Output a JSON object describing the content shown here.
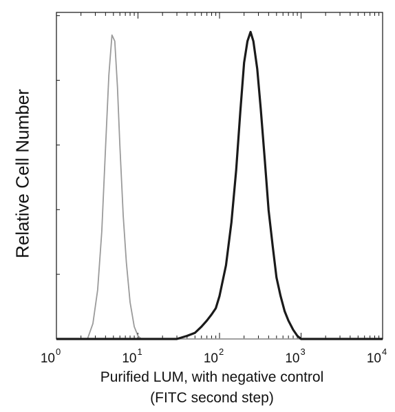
{
  "chart_data": {
    "type": "line",
    "title": "",
    "xlabel": "Purified LUM, with negative control",
    "xlabel_note": "(FITC second step)",
    "ylabel": "Relative Cell Number",
    "x_scale": "log",
    "xlim": [
      1,
      10000
    ],
    "ylim": [
      0,
      1
    ],
    "x_ticks": [
      {
        "base": "10",
        "exp": "0"
      },
      {
        "base": "10",
        "exp": "1"
      },
      {
        "base": "10",
        "exp": "2"
      },
      {
        "base": "10",
        "exp": "3"
      },
      {
        "base": "10",
        "exp": "4"
      }
    ],
    "grid": false,
    "legend": "none",
    "series": [
      {
        "color": "#9a9a9a",
        "x": [
          2.4,
          2.8,
          3.2,
          3.6,
          4.0,
          4.4,
          4.8,
          5.2,
          5.6,
          6.0,
          6.6,
          7.2,
          8.0,
          9.0,
          10.0,
          11.0
        ],
        "values": [
          0.0,
          0.05,
          0.16,
          0.35,
          0.62,
          0.86,
          0.99,
          0.97,
          0.82,
          0.63,
          0.4,
          0.25,
          0.12,
          0.04,
          0.01,
          0.0
        ]
      },
      {
        "color": "#1a1a1a",
        "x": [
          30,
          40,
          50,
          60,
          70,
          80,
          90,
          100,
          120,
          140,
          160,
          180,
          200,
          220,
          240,
          260,
          290,
          320,
          360,
          400,
          450,
          500,
          560,
          630,
          700,
          800,
          900,
          1000
        ],
        "values": [
          0.0,
          0.01,
          0.02,
          0.04,
          0.06,
          0.08,
          0.1,
          0.14,
          0.24,
          0.38,
          0.55,
          0.74,
          0.9,
          0.97,
          1.0,
          0.97,
          0.88,
          0.75,
          0.58,
          0.42,
          0.3,
          0.2,
          0.14,
          0.09,
          0.06,
          0.03,
          0.01,
          0.0
        ]
      }
    ]
  }
}
